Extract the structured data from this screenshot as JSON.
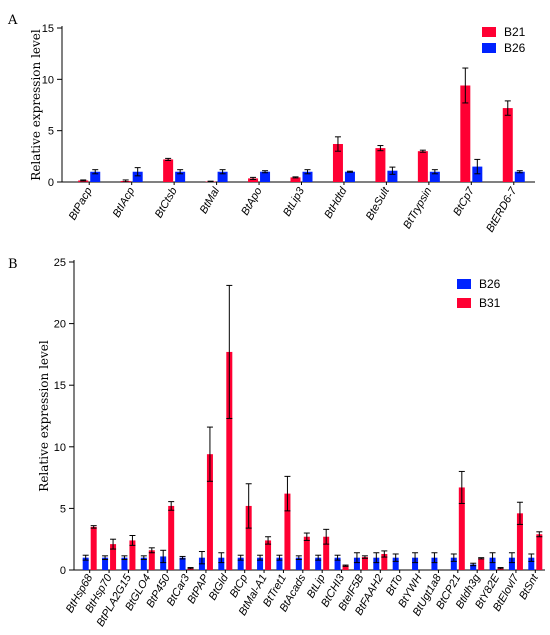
{
  "chart_data": [
    {
      "panel": "A",
      "type": "bar",
      "ylabel": "Relative expression level",
      "ylim": [
        0,
        15
      ],
      "yticks": [
        0,
        5,
        10,
        15
      ],
      "categories": [
        "BtPacp",
        "BtIAcp",
        "BtCtsb",
        "BtMal",
        "BtApo",
        "BtLip3",
        "BtHdtd",
        "BteSult",
        "BtTrypsin",
        "BtCp7",
        "BtERD6-7"
      ],
      "series": [
        {
          "name": "B21",
          "color": "#ff0033",
          "values": [
            0.15,
            0.1,
            2.2,
            0.05,
            0.35,
            0.45,
            3.7,
            3.3,
            3.0,
            9.4,
            7.2
          ],
          "errors": [
            0.05,
            0.1,
            0.1,
            0.03,
            0.1,
            0.05,
            0.7,
            0.25,
            0.1,
            1.7,
            0.7
          ]
        },
        {
          "name": "B26",
          "color": "#0022ff",
          "values": [
            1.0,
            1.0,
            1.0,
            1.0,
            1.0,
            1.0,
            1.0,
            1.1,
            1.0,
            1.5,
            1.0
          ],
          "errors": [
            0.2,
            0.4,
            0.2,
            0.2,
            0.1,
            0.2,
            0.05,
            0.35,
            0.2,
            0.7,
            0.1
          ]
        }
      ],
      "legend_position": "top-right"
    },
    {
      "panel": "B",
      "type": "bar",
      "ylabel": "Relative expression level",
      "ylim": [
        0,
        25
      ],
      "yticks": [
        0,
        5,
        10,
        15,
        20,
        25
      ],
      "categories": [
        "BtHsp68",
        "BtHsp70",
        "BtPLA2G15",
        "BtGLO4",
        "BtP450",
        "BtCar3",
        "BtPAP",
        "BtGld",
        "BtCp",
        "BtMal-A1",
        "BtTret1",
        "BtAcads",
        "BtLip",
        "BtCHI3",
        "BteIF5B",
        "BtFAAH2",
        "BtTo",
        "BtYWH",
        "BtUgt1a8",
        "BtCP21",
        "Btldh3g",
        "BtY82E",
        "BtElovl7",
        "BtSnt"
      ],
      "series": [
        {
          "name": "B26",
          "color": "#0022ff",
          "values": [
            1.0,
            1.0,
            1.0,
            1.0,
            1.1,
            1.0,
            1.0,
            1.0,
            1.0,
            1.0,
            1.0,
            1.0,
            1.0,
            1.0,
            1.0,
            1.0,
            1.0,
            1.0,
            1.0,
            1.0,
            0.45,
            1.0,
            1.0,
            1.0
          ],
          "errors": [
            0.2,
            0.15,
            0.15,
            0.15,
            0.5,
            0.1,
            0.5,
            0.4,
            0.2,
            0.2,
            0.2,
            0.15,
            0.2,
            0.2,
            0.4,
            0.4,
            0.3,
            0.4,
            0.4,
            0.3,
            0.1,
            0.4,
            0.4,
            0.3
          ]
        },
        {
          "name": "B31",
          "color": "#ff0033",
          "values": [
            3.5,
            2.1,
            2.4,
            1.6,
            5.2,
            0.15,
            9.4,
            17.7,
            5.2,
            2.4,
            6.2,
            2.7,
            2.7,
            0.35,
            1.05,
            1.3,
            0.0,
            0.0,
            0.0,
            6.7,
            0.95,
            0.15,
            4.6,
            2.9
          ],
          "errors": [
            0.1,
            0.4,
            0.4,
            0.2,
            0.35,
            0.05,
            2.2,
            5.4,
            1.8,
            0.3,
            1.4,
            0.3,
            0.6,
            0.05,
            0.1,
            0.25,
            0.0,
            0.0,
            0.0,
            1.3,
            0.05,
            0.05,
            0.9,
            0.2
          ]
        }
      ],
      "legend_position": "top-right"
    }
  ]
}
